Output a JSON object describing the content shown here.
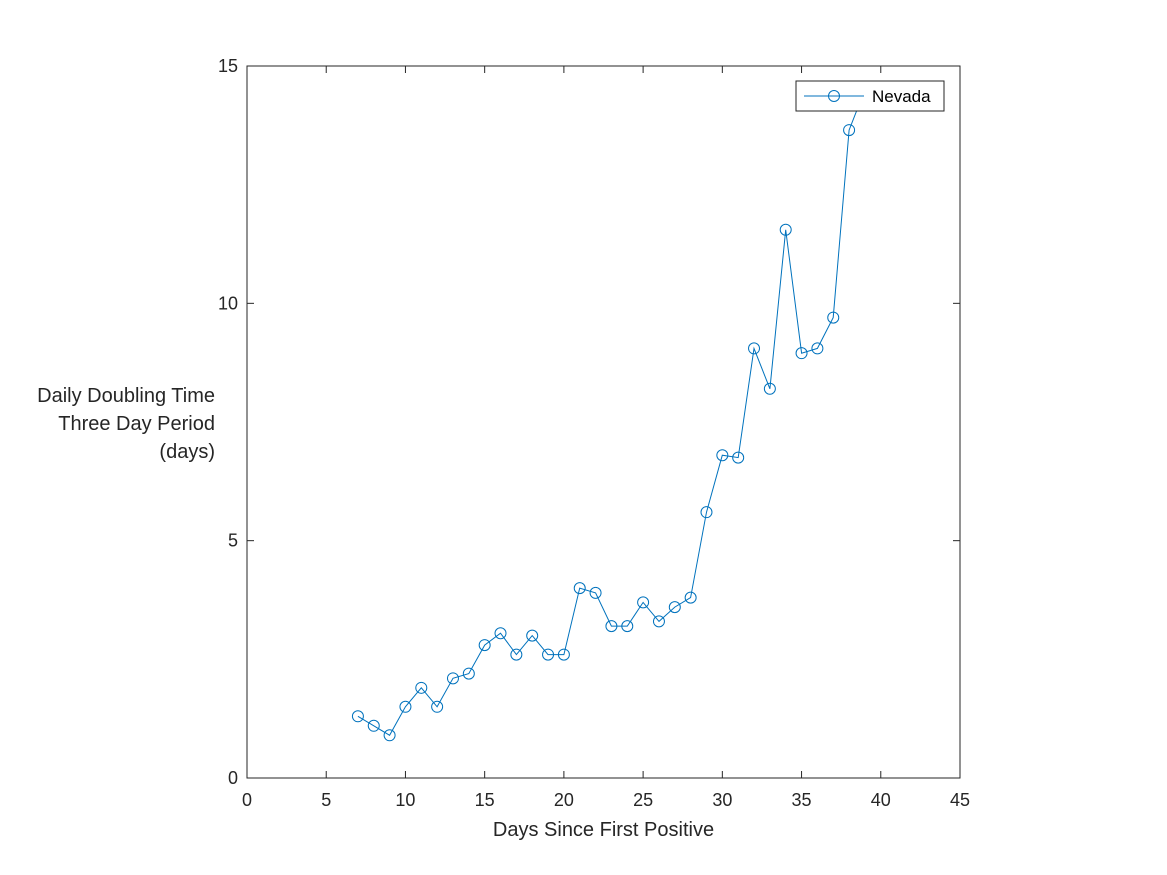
{
  "chart_data": {
    "type": "line",
    "title": "",
    "xlabel": "Days Since First Positive",
    "ylabel_lines": [
      "Daily Doubling Time",
      "Three Day Period",
      "(days)"
    ],
    "xlim": [
      0,
      45
    ],
    "ylim": [
      0,
      15
    ],
    "xticks": [
      0,
      5,
      10,
      15,
      20,
      25,
      30,
      35,
      40,
      45
    ],
    "yticks": [
      0,
      5,
      10,
      15
    ],
    "grid": false,
    "legend_position": "top-right",
    "series": [
      {
        "name": "Nevada",
        "color": "#0072bd",
        "marker": "circle",
        "x": [
          7,
          8,
          9,
          10,
          11,
          12,
          13,
          14,
          15,
          16,
          17,
          18,
          19,
          20,
          21,
          22,
          23,
          24,
          25,
          26,
          27,
          28,
          29,
          30,
          31,
          32,
          33,
          34,
          35,
          36,
          37,
          38,
          39
        ],
        "y": [
          1.3,
          1.1,
          0.9,
          1.5,
          1.9,
          1.5,
          2.1,
          2.2,
          2.8,
          3.05,
          2.6,
          3.0,
          2.6,
          2.6,
          4.0,
          3.9,
          3.2,
          3.2,
          3.7,
          3.3,
          3.6,
          3.8,
          5.6,
          6.8,
          6.75,
          9.05,
          8.2,
          11.55,
          8.95,
          9.05,
          9.7,
          13.65,
          14.5
        ]
      }
    ]
  }
}
